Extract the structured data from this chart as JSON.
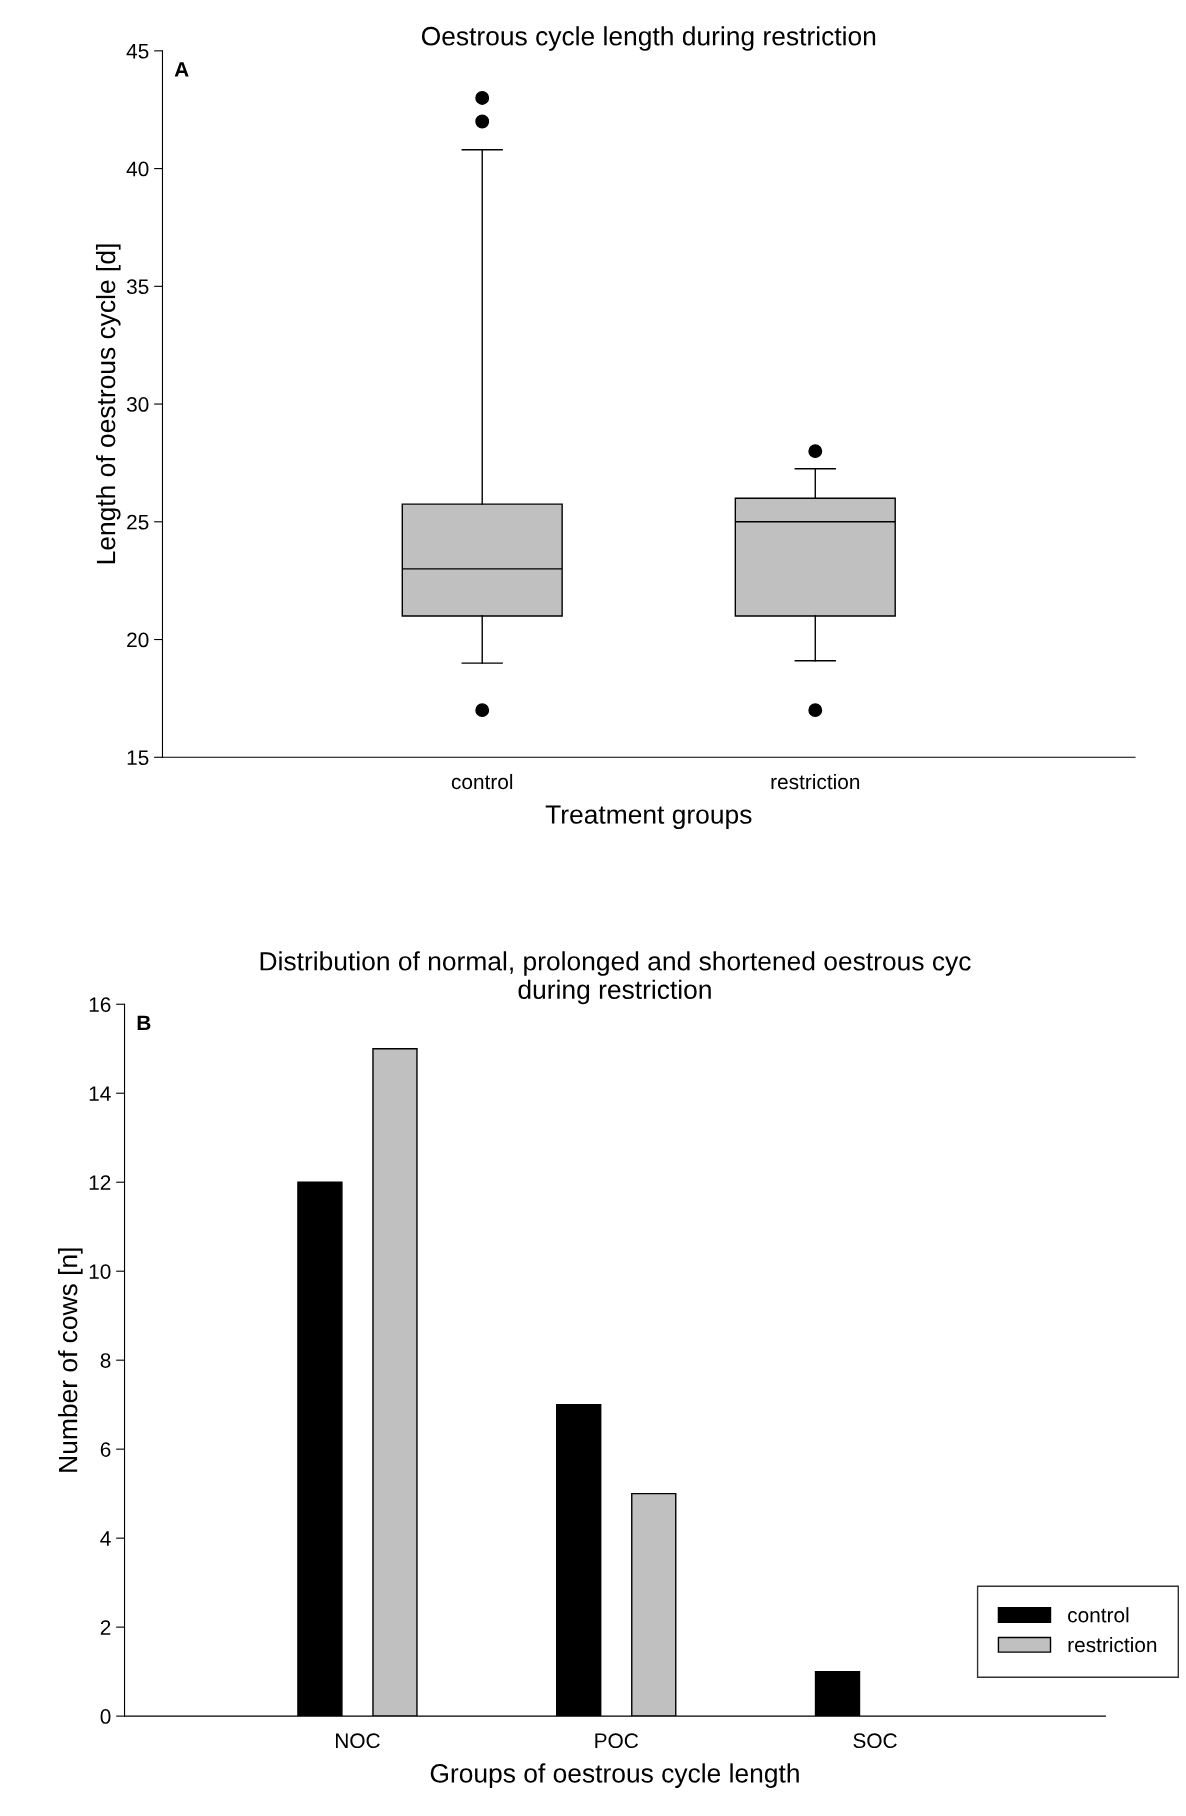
{
  "chart_data": [
    {
      "type": "box",
      "title": "Oestrous cycle length during restriction",
      "xlabel": "Treatment groups",
      "ylabel": "Length of oestrous cycle [d]",
      "categories": [
        "control",
        "restriction"
      ],
      "color": "#c0c0c0",
      "boxes": [
        {
          "low": 19,
          "q1": 21,
          "median": 23,
          "q3": 25.75,
          "high": 40.8,
          "outliers": [
            43,
            42,
            17
          ]
        },
        {
          "low": 19.1,
          "q1": 21,
          "median": 25,
          "q3": 26,
          "high": 27.25,
          "outliers": [
            28,
            17
          ]
        }
      ],
      "ylim": [
        15,
        45
      ],
      "yticks": [
        15,
        20,
        25,
        30,
        35,
        40,
        45
      ],
      "grid": false,
      "annotations": [
        "A"
      ]
    },
    {
      "type": "bar",
      "title": "Distribution of normal, prolonged and shortened oestrous cyc\nduring restriction",
      "xlabel": "Groups of oestrous cycle length",
      "ylabel": "Number of cows [n]",
      "categories": [
        "NOC",
        "POC",
        "SOC"
      ],
      "series": [
        {
          "name": "control",
          "color": "#000000",
          "values": [
            12,
            7,
            1
          ]
        },
        {
          "name": "restriction",
          "color": "#c0c0c0",
          "values": [
            15,
            5,
            0
          ]
        }
      ],
      "ylim": [
        0,
        16
      ],
      "yticks": [
        0,
        2,
        4,
        6,
        8,
        10,
        12,
        14,
        16
      ],
      "grid": false,
      "legend": "bottom right",
      "annotations": [
        "B"
      ]
    }
  ]
}
